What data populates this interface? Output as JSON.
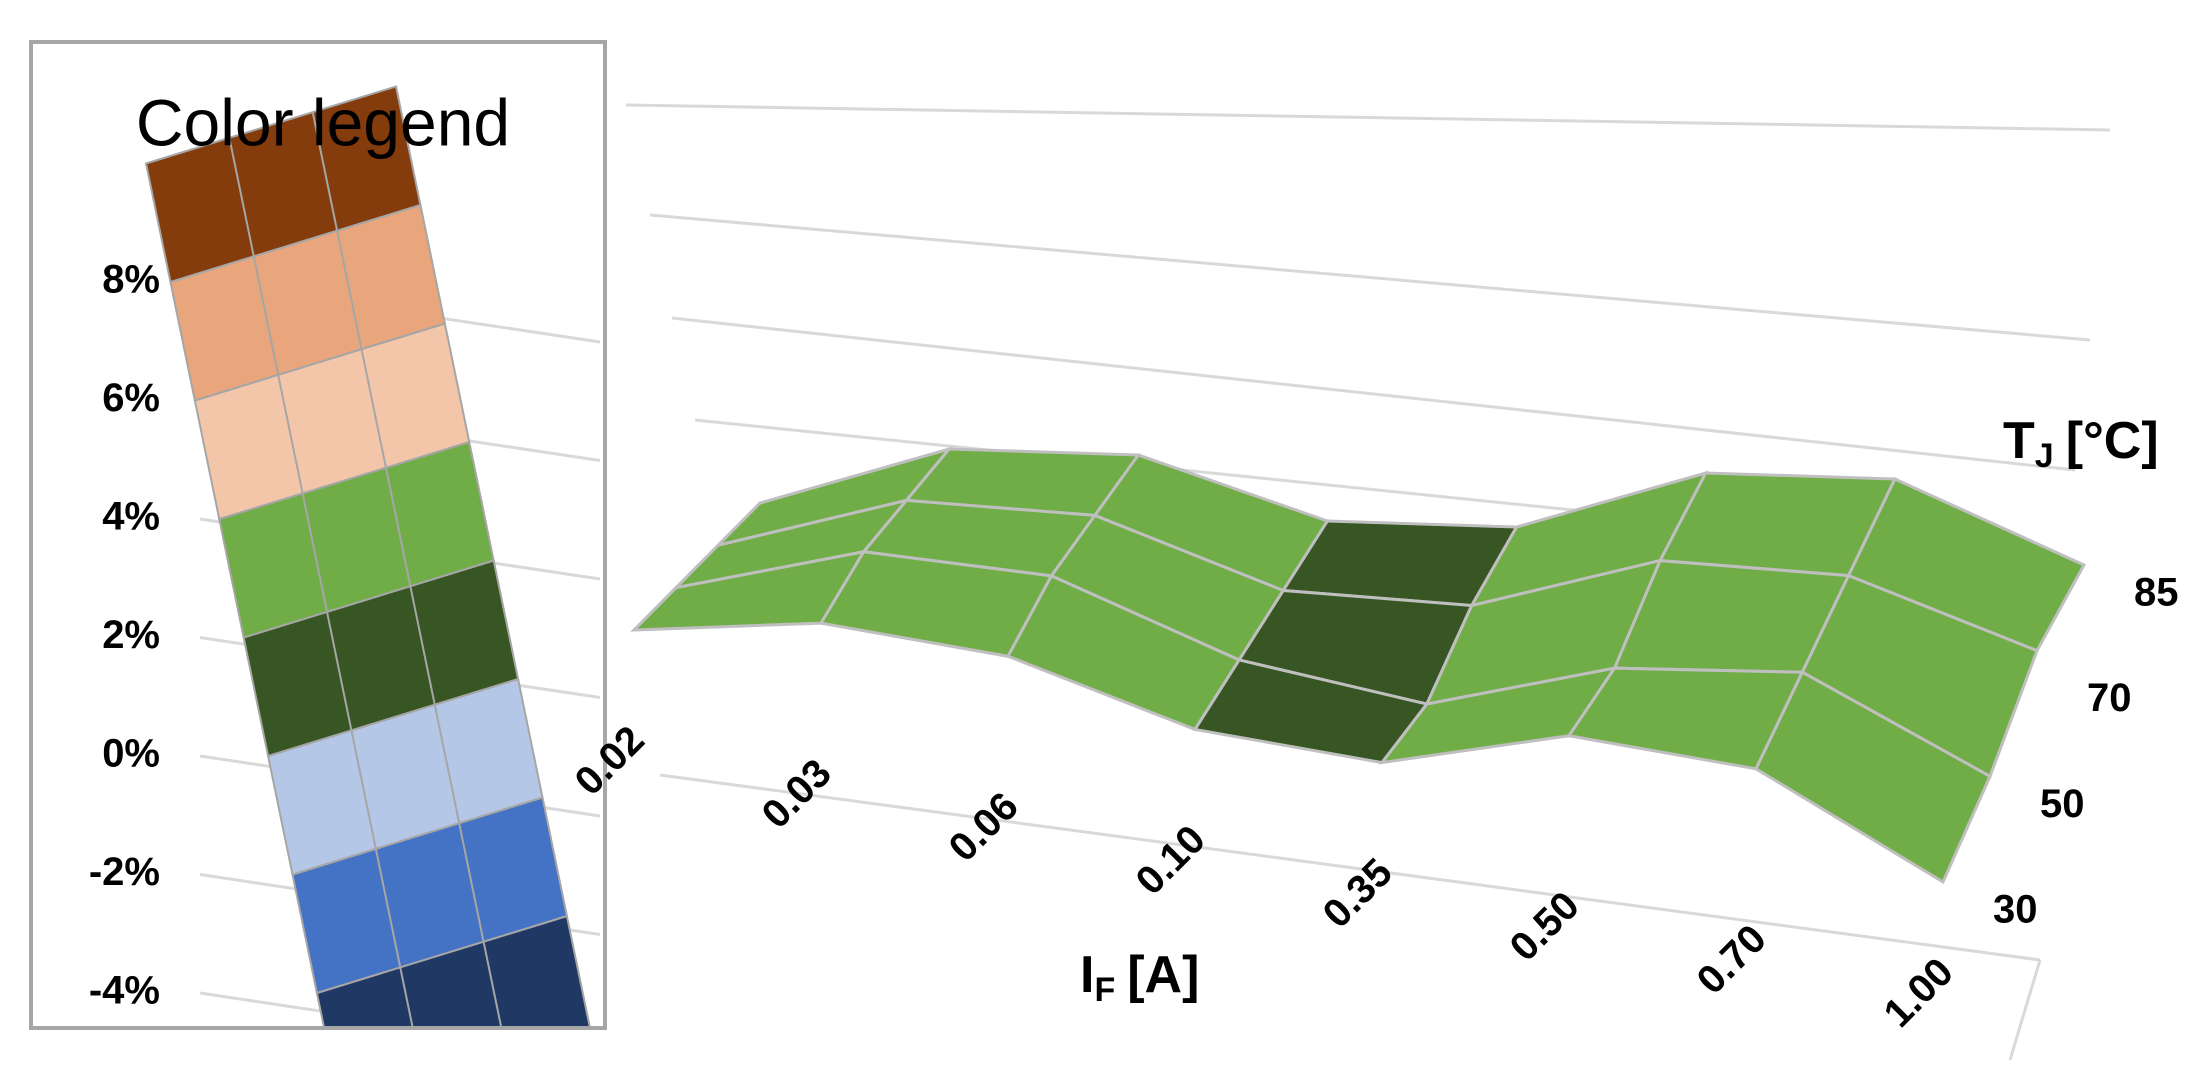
{
  "chart_data": {
    "type": "surface",
    "legend_title": "Color legend",
    "x_label": {
      "symbol": "I",
      "subscript": "F",
      "unit": "[A]"
    },
    "y_label": {
      "symbol": "T",
      "subscript": "J",
      "unit": "[°C]"
    },
    "categories": [
      "0.02",
      "0.03",
      "0.06",
      "0.10",
      "0.35",
      "0.50",
      "0.70",
      "1.00"
    ],
    "depth_categories": [
      30,
      50,
      70,
      85
    ],
    "values": [
      [
        1.5,
        2.5,
        2.5,
        1.5,
        1.5,
        3.0,
        3.0,
        1.0
      ],
      [
        1.5,
        3.0,
        3.0,
        1.5,
        1.0,
        2.5,
        3.0,
        1.0
      ],
      [
        1.5,
        3.0,
        3.0,
        1.5,
        1.5,
        3.0,
        3.0,
        1.5
      ],
      [
        1.5,
        3.0,
        3.0,
        1.5,
        1.5,
        3.0,
        3.0,
        1.0
      ]
    ],
    "zlim": [
      -4,
      8
    ],
    "zticks": [
      {
        "value": -4,
        "label": "-4%"
      },
      {
        "value": -2,
        "label": "-2%"
      },
      {
        "value": 0,
        "label": "0%"
      },
      {
        "value": 2,
        "label": "2%"
      },
      {
        "value": 4,
        "label": "4%"
      },
      {
        "value": 6,
        "label": "6%"
      },
      {
        "value": 8,
        "label": "8%"
      }
    ],
    "band_colors": [
      "#1f3864",
      "#4472c4",
      "#b4c7e7",
      "#375623",
      "#70ad47",
      "#f4c6a9",
      "#e9a57c",
      "#843c0c"
    ],
    "grid_color": "#bfbfbf"
  }
}
